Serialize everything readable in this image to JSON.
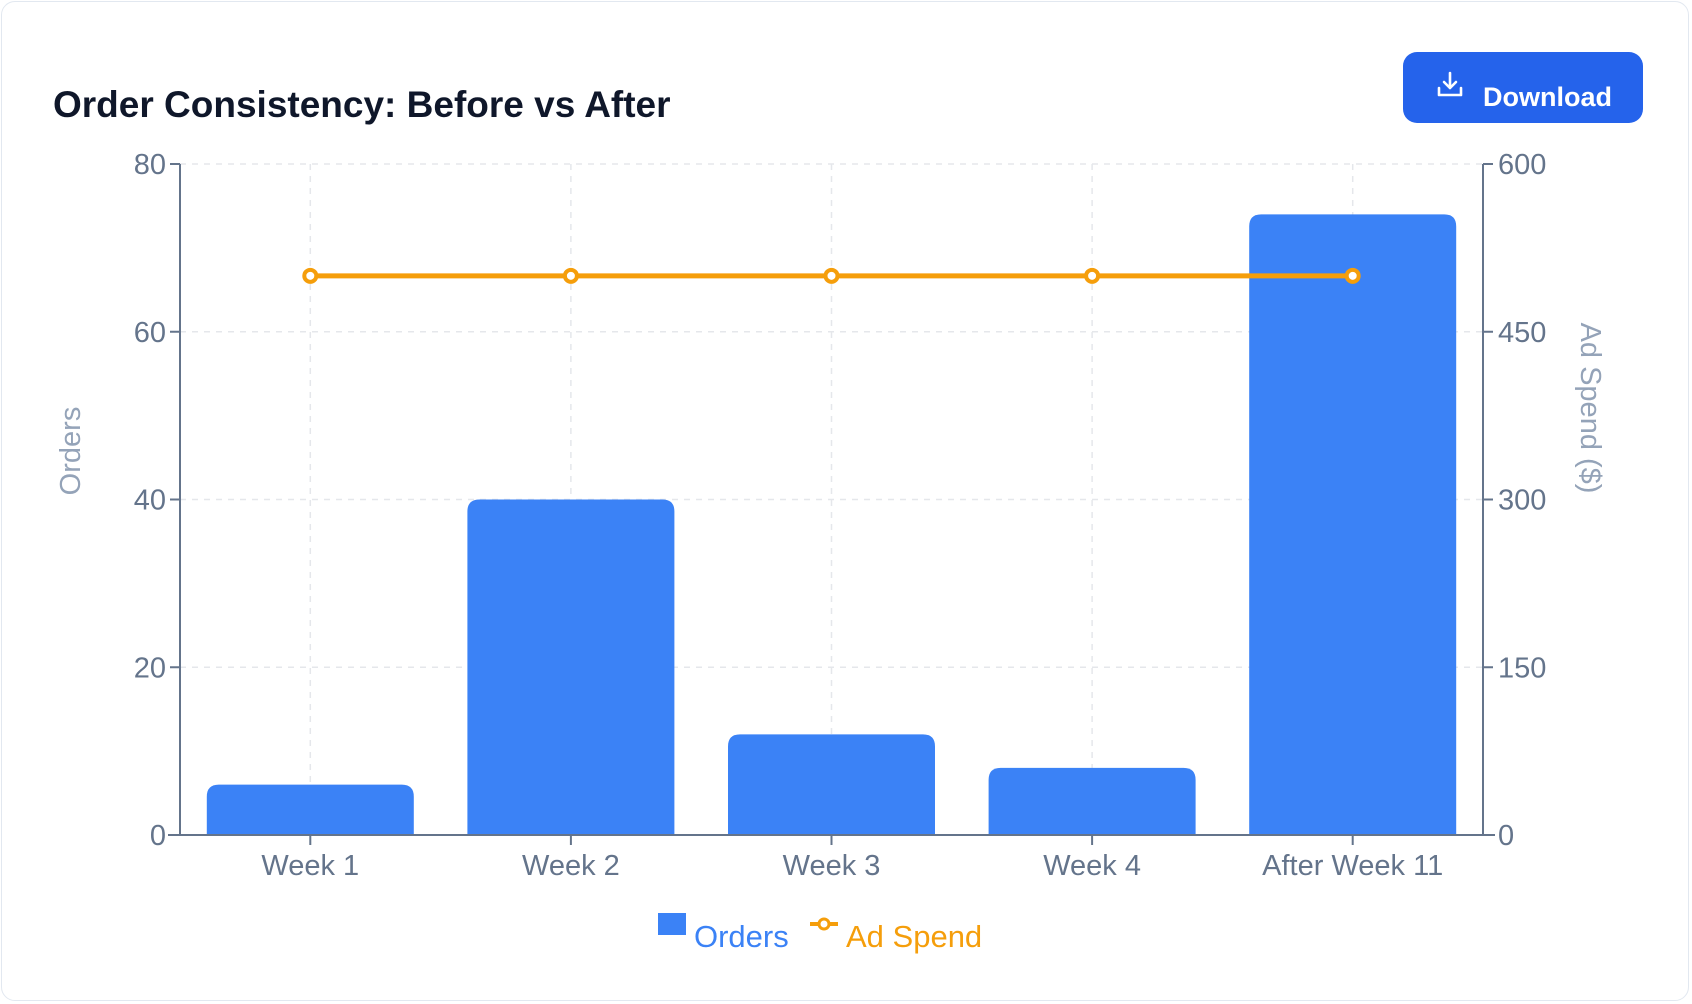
{
  "header": {
    "title": "Order Consistency: Before vs After",
    "download_label": "Download",
    "download_icon": "download-icon"
  },
  "colors": {
    "orders": "#3b82f6",
    "ad_spend": "#f59e0b",
    "button": "#2563eb",
    "axis": "#64748b"
  },
  "chart_data": {
    "type": "bar",
    "title": "Order Consistency: Before vs After",
    "categories": [
      "Week 1",
      "Week 2",
      "Week 3",
      "Week 4",
      "After Week 11"
    ],
    "series": [
      {
        "name": "Orders",
        "type": "bar",
        "axis": "left",
        "values": [
          6,
          40,
          12,
          8,
          74
        ]
      },
      {
        "name": "Ad Spend",
        "type": "line",
        "axis": "right",
        "values": [
          500,
          500,
          500,
          500,
          500
        ]
      }
    ],
    "ylabel": "Orders",
    "ylabel_right": "Ad Spend ($)",
    "ylim": [
      0,
      80
    ],
    "ylim_right": [
      0,
      600
    ],
    "yticks": [
      0,
      20,
      40,
      60,
      80
    ],
    "yticks_right": [
      0,
      150,
      300,
      450,
      600
    ],
    "grid": true,
    "legend": "bottom-center"
  }
}
